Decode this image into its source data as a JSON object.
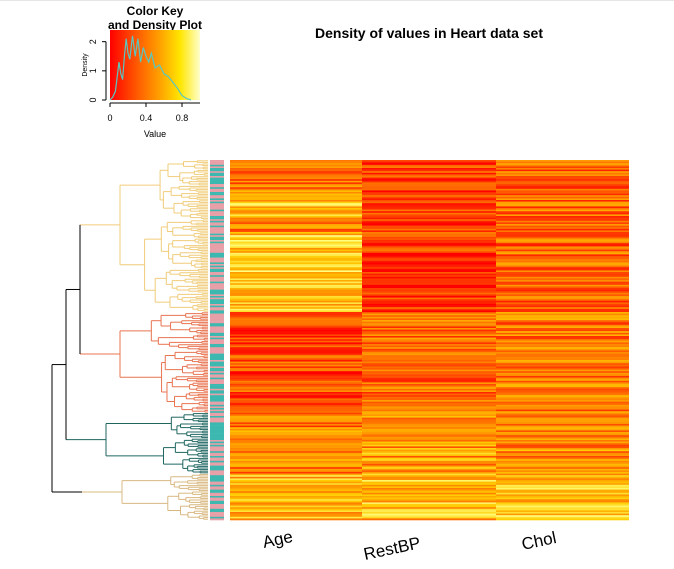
{
  "chart_data": {
    "type": "heatmap",
    "title": "Density of values in Heart data set",
    "columns": [
      "Age",
      "RestBP",
      "Chol"
    ],
    "row_count": 225,
    "value_range": [
      0,
      1
    ],
    "palette": [
      "#FF0000",
      "#FF4400",
      "#FF8800",
      "#FFCC00",
      "#FFFF80",
      "#FFFFE0"
    ],
    "row_side_colors": [
      "#3CB8B0",
      "#E8A0A8"
    ],
    "dendrogram": {
      "clusters": [
        {
          "color": "#F0CC7A",
          "rows": 95
        },
        {
          "color": "#E8734F",
          "rows": 63
        },
        {
          "color": "#1F6660",
          "rows": 38
        },
        {
          "color": "#D8B880",
          "rows": 29
        }
      ]
    },
    "color_key": {
      "title_line1": "Color Key",
      "title_line2": "and Density Plot",
      "xlabel": "Value",
      "ylabel": "Density",
      "x_ticks": [
        "0",
        "0.4",
        "0.8"
      ],
      "x_tick_values": [
        0,
        0.4,
        0.8
      ],
      "y_ticks": [
        "0",
        "1",
        "2"
      ],
      "y_tick_values": [
        0,
        1,
        2
      ],
      "y_max": 2.4,
      "density_curve": [
        [
          0.0,
          0.0
        ],
        [
          0.03,
          0.1
        ],
        [
          0.06,
          0.3
        ],
        [
          0.08,
          0.8
        ],
        [
          0.1,
          1.3
        ],
        [
          0.12,
          0.9
        ],
        [
          0.14,
          0.7
        ],
        [
          0.16,
          1.5
        ],
        [
          0.18,
          2.1
        ],
        [
          0.2,
          1.6
        ],
        [
          0.22,
          1.4
        ],
        [
          0.25,
          2.2
        ],
        [
          0.28,
          1.5
        ],
        [
          0.31,
          2.1
        ],
        [
          0.34,
          1.3
        ],
        [
          0.37,
          1.8
        ],
        [
          0.4,
          1.5
        ],
        [
          0.43,
          1.3
        ],
        [
          0.46,
          1.6
        ],
        [
          0.5,
          1.1
        ],
        [
          0.55,
          1.2
        ],
        [
          0.6,
          0.9
        ],
        [
          0.65,
          0.8
        ],
        [
          0.7,
          0.6
        ],
        [
          0.75,
          0.4
        ],
        [
          0.8,
          0.15
        ],
        [
          0.85,
          0.05
        ],
        [
          0.9,
          0.0
        ]
      ]
    }
  }
}
